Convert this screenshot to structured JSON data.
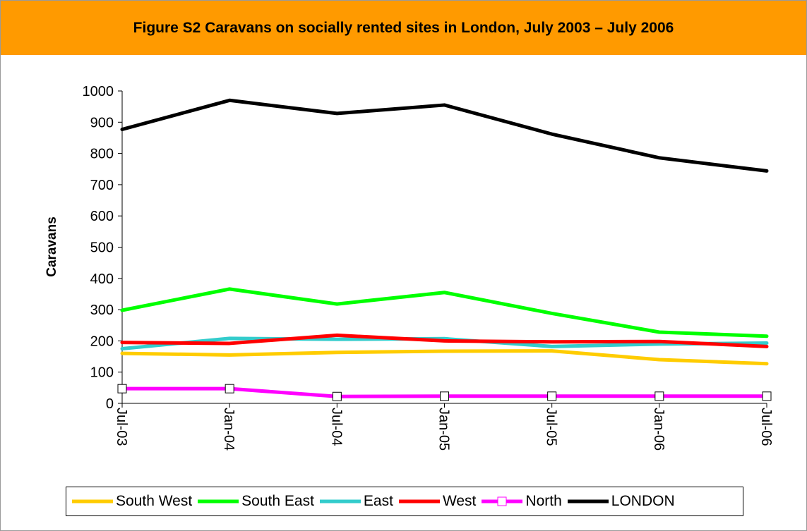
{
  "header": {
    "title": "Figure S2 Caravans on socially rented sites in London, July 2003 – July 2006"
  },
  "colors": {
    "header_bg": "#ff9a00"
  },
  "chart_data": {
    "type": "line",
    "title": "Figure S2 Caravans on socially rented sites in London, July 2003 – July 2006",
    "xlabel": "",
    "ylabel": "Caravans",
    "categories": [
      "Jul-03",
      "Jan-04",
      "Jul-04",
      "Jan-05",
      "Jul-05",
      "Jan-06",
      "Jul-06"
    ],
    "ylim": [
      0,
      1000
    ],
    "yticks": [
      "0",
      "100",
      "200",
      "300",
      "400",
      "500",
      "600",
      "700",
      "800",
      "900",
      "1000"
    ],
    "grid": false,
    "legend_position": "bottom",
    "series": [
      {
        "name": "South West",
        "color": "#ffcc00",
        "marker": "none",
        "values": [
          160,
          155,
          163,
          167,
          168,
          140,
          127
        ]
      },
      {
        "name": "South East",
        "color": "#00ff00",
        "marker": "none",
        "values": [
          298,
          366,
          318,
          355,
          288,
          228,
          215
        ]
      },
      {
        "name": "East",
        "color": "#33cccc",
        "marker": "none",
        "values": [
          175,
          208,
          205,
          207,
          182,
          190,
          193
        ]
      },
      {
        "name": "West",
        "color": "#ff0000",
        "marker": "none",
        "values": [
          195,
          192,
          218,
          200,
          197,
          198,
          182
        ]
      },
      {
        "name": "North",
        "color": "#ff00ff",
        "marker": "square",
        "values": [
          47,
          47,
          22,
          23,
          23,
          23,
          23
        ]
      },
      {
        "name": "LONDON",
        "color": "#000000",
        "marker": "none",
        "values": [
          877,
          970,
          928,
          955,
          862,
          786,
          744
        ]
      }
    ]
  }
}
